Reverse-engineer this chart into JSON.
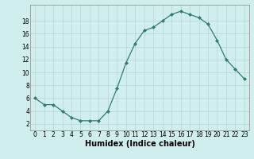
{
  "x": [
    0,
    1,
    2,
    3,
    4,
    5,
    6,
    7,
    8,
    9,
    10,
    11,
    12,
    13,
    14,
    15,
    16,
    17,
    18,
    19,
    20,
    21,
    22,
    23
  ],
  "y": [
    6,
    5,
    5,
    4,
    3,
    2.5,
    2.5,
    2.5,
    4,
    7.5,
    11.5,
    14.5,
    16.5,
    17,
    18,
    19,
    19.5,
    19,
    18.5,
    17.5,
    15,
    12,
    10.5,
    9
  ],
  "line_color": "#2e7d6e",
  "marker_color": "#2e7d6e",
  "bg_color": "#d0eeee",
  "grid_color": "#b8d4d4",
  "xlabel": "Humidex (Indice chaleur)",
  "xlim": [
    -0.5,
    23.5
  ],
  "ylim": [
    1,
    20.5
  ],
  "yticks": [
    2,
    4,
    6,
    8,
    10,
    12,
    14,
    16,
    18
  ],
  "xticks": [
    0,
    1,
    2,
    3,
    4,
    5,
    6,
    7,
    8,
    9,
    10,
    11,
    12,
    13,
    14,
    15,
    16,
    17,
    18,
    19,
    20,
    21,
    22,
    23
  ],
  "xlabel_fontsize": 7,
  "tick_fontsize": 5.5
}
